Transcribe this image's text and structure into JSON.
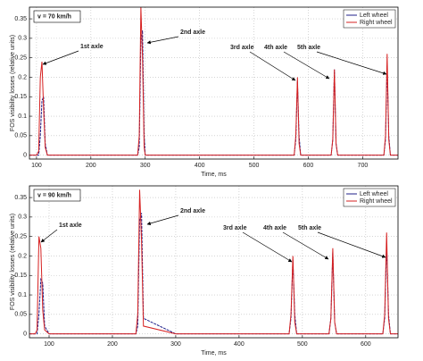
{
  "chart_data": [
    {
      "type": "line",
      "xlabel": "Time, ms",
      "ylabel": "FOS visibility losses (relative units)",
      "speed_label": "v = 70 km/h",
      "annotations": [
        "1st axle",
        "2nd axle",
        "3rd axle",
        "4th axle",
        "5th axle"
      ],
      "x": [
        87,
        100,
        104,
        107,
        110,
        113,
        116,
        120,
        200,
        286,
        289,
        292,
        295,
        298,
        300,
        400,
        500,
        574,
        577,
        580,
        583,
        586,
        600,
        642,
        645,
        648,
        651,
        654,
        700,
        739,
        742,
        745,
        748,
        751,
        765
      ],
      "series": [
        {
          "name": "Left wheel",
          "color": "#1f1f8a",
          "values": [
            0,
            0,
            0,
            0.05,
            0.14,
            0.15,
            0.03,
            0,
            0,
            0,
            0.02,
            0.3,
            0.32,
            0.05,
            0,
            0,
            0,
            0,
            0.04,
            0.19,
            0.05,
            0,
            0,
            0,
            0.04,
            0.22,
            0.03,
            0,
            0,
            0,
            0.04,
            0.23,
            0.05,
            0,
            0
          ]
        },
        {
          "name": "Right wheel",
          "color": "#d62020",
          "values": [
            0,
            0,
            0.01,
            0.2,
            0.24,
            0.12,
            0.02,
            0,
            0,
            0,
            0.05,
            0.38,
            0.25,
            0.02,
            0,
            0,
            0,
            0,
            0.05,
            0.2,
            0.03,
            0,
            0,
            0,
            0.04,
            0.22,
            0.03,
            0,
            0,
            0,
            0.05,
            0.26,
            0.04,
            0,
            0
          ]
        }
      ],
      "xlim": [
        87,
        765
      ],
      "ylim": [
        -0.01,
        0.38
      ],
      "xticks": [
        100,
        200,
        300,
        400,
        500,
        600,
        700
      ],
      "yticks": [
        0,
        0.05,
        0.1,
        0.15,
        0.2,
        0.25,
        0.3,
        0.35
      ],
      "grid": true,
      "legend": "upper right"
    },
    {
      "type": "line",
      "xlabel": "Time, ms",
      "ylabel": "FOS visibility losses (relative units)",
      "speed_label": "v = 90 km/h",
      "annotations": [
        "1st axle",
        "2nd axle",
        "3rd axle",
        "4th axle",
        "5th axle"
      ],
      "x": [
        69,
        78,
        81,
        84,
        87,
        90,
        93,
        100,
        200,
        237,
        240,
        243,
        246,
        249,
        300,
        400,
        479,
        482,
        485,
        488,
        491,
        500,
        542,
        545,
        548,
        551,
        554,
        600,
        627,
        630,
        633,
        636,
        639,
        651
      ],
      "series": [
        {
          "name": "Left wheel",
          "color": "#1f1f8a",
          "values": [
            0,
            0,
            0,
            0.05,
            0.14,
            0.13,
            0.02,
            0,
            0,
            0,
            0.02,
            0.29,
            0.31,
            0.04,
            0,
            0,
            0,
            0.04,
            0.19,
            0.05,
            0,
            0,
            0,
            0.04,
            0.21,
            0.03,
            0,
            0,
            0,
            0.04,
            0.23,
            0.05,
            0,
            0
          ]
        },
        {
          "name": "Right wheel",
          "color": "#d62020",
          "values": [
            0,
            0,
            0.01,
            0.25,
            0.22,
            0.06,
            0.01,
            0,
            0,
            0,
            0.05,
            0.37,
            0.24,
            0.02,
            0,
            0,
            0,
            0.05,
            0.2,
            0.03,
            0,
            0,
            0,
            0.04,
            0.22,
            0.03,
            0,
            0,
            0,
            0.05,
            0.26,
            0.04,
            0,
            0
          ]
        }
      ],
      "xlim": [
        69,
        651
      ],
      "ylim": [
        -0.01,
        0.38
      ],
      "xticks": [
        100,
        200,
        300,
        400,
        500,
        600
      ],
      "yticks": [
        0,
        0.05,
        0.1,
        0.15,
        0.2,
        0.25,
        0.3,
        0.35
      ],
      "grid": true,
      "legend": "upper right"
    }
  ]
}
